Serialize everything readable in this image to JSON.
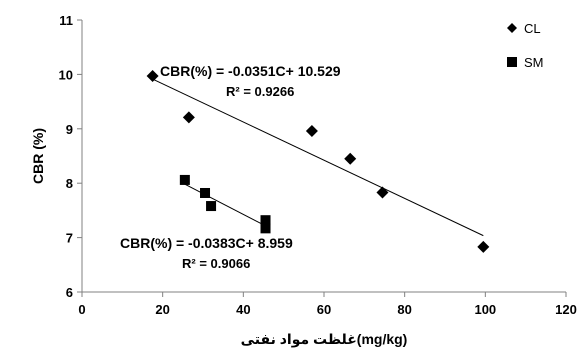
{
  "chart_data": {
    "type": "scatter",
    "xlabel": "غلظت مواد نفتی(mg/kg)",
    "ylabel": "CBR (%)",
    "xlim": [
      0,
      120
    ],
    "ylim": [
      6,
      11
    ],
    "xticks": [
      0,
      20,
      40,
      60,
      80,
      100,
      120
    ],
    "yticks": [
      6,
      7,
      8,
      9,
      10,
      11
    ],
    "grid": false,
    "legend_position": "top-right",
    "series": [
      {
        "name": "CL",
        "marker": "diamond",
        "color": "#000000",
        "x": [
          17.5,
          26.5,
          57,
          66.5,
          74.5,
          99.5
        ],
        "y": [
          9.97,
          9.21,
          8.96,
          8.45,
          7.83,
          6.83
        ],
        "trendline": {
          "slope": -0.0351,
          "intercept": 10.529,
          "x_range": [
            17.5,
            99.5
          ]
        },
        "equation": "CBR(%)  = -0.0351C+ 10.529",
        "r2": "R² = 0.9266"
      },
      {
        "name": "SM",
        "marker": "square",
        "color": "#000000",
        "x": [
          25.5,
          30.5,
          32,
          45.5,
          45.5
        ],
        "y": [
          8.06,
          7.82,
          7.58,
          7.32,
          7.17
        ],
        "trendline": {
          "slope": -0.0383,
          "intercept": 8.959,
          "x_range": [
            25.5,
            45.5
          ]
        },
        "equation": "CBR(%) = -0.0383C+ 8.959",
        "r2": "R² = 0.9066"
      }
    ]
  }
}
